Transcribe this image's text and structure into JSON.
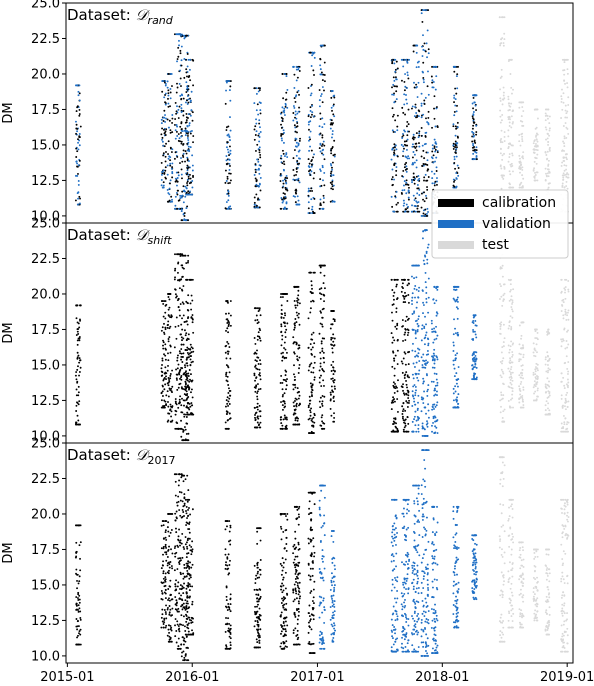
{
  "chart_data": [
    {
      "type": "scatter",
      "title": "Dataset: 𝒟rand",
      "title_main": "Dataset: ",
      "title_script": "𝒟",
      "title_sub": "rand",
      "ylabel": "DM",
      "ylim": [
        9.5,
        25.0
      ],
      "yticks": [
        "10.0",
        "12.5",
        "15.0",
        "17.5",
        "20.0",
        "22.5",
        "25.0"
      ],
      "legend": {
        "placement": "lower-right",
        "entries": [
          {
            "label": "calibration",
            "color": "#000000"
          },
          {
            "label": "validation",
            "color": "#1f6fc5"
          },
          {
            "label": "test",
            "color": "#d9d9d9"
          }
        ]
      },
      "split": "random",
      "clusters": [
        {
          "x": "2015-02-02",
          "ymin": 10.8,
          "ymax": 19.2,
          "dense": 0.5,
          "role": "cal-val"
        },
        {
          "x": "2015-10-10",
          "ymin": 12.0,
          "ymax": 19.5,
          "dense": 0.5,
          "role": "cal-val"
        },
        {
          "x": "2015-10-28",
          "ymin": 11.0,
          "ymax": 20.0,
          "dense": 0.5,
          "role": "cal-val"
        },
        {
          "x": "2015-11-22",
          "ymin": 10.5,
          "ymax": 22.8,
          "dense": 1.0,
          "role": "cal-val"
        },
        {
          "x": "2015-12-10",
          "ymin": 9.7,
          "ymax": 22.7,
          "dense": 1.0,
          "role": "cal-val"
        },
        {
          "x": "2015-12-24",
          "ymin": 11.5,
          "ymax": 21.0,
          "dense": 1.0,
          "role": "cal-val"
        },
        {
          "x": "2016-04-15",
          "ymin": 10.5,
          "ymax": 19.5,
          "dense": 0.6,
          "role": "cal-val"
        },
        {
          "x": "2016-07-10",
          "ymin": 10.6,
          "ymax": 19.0,
          "dense": 0.8,
          "role": "cal-val"
        },
        {
          "x": "2016-09-25",
          "ymin": 10.5,
          "ymax": 20.0,
          "dense": 0.9,
          "role": "cal-val"
        },
        {
          "x": "2016-11-01",
          "ymin": 10.8,
          "ymax": 20.5,
          "dense": 0.9,
          "role": "cal-val"
        },
        {
          "x": "2016-12-15",
          "ymin": 10.2,
          "ymax": 21.5,
          "dense": 0.8,
          "role": "cal-val"
        },
        {
          "x": "2017-01-15",
          "ymin": 10.5,
          "ymax": 22.0,
          "dense": 0.6,
          "role": "cal-val"
        },
        {
          "x": "2017-02-15",
          "ymin": 11.0,
          "ymax": 18.8,
          "dense": 0.4,
          "role": "cal-val"
        },
        {
          "x": "2017-08-15",
          "ymin": 10.3,
          "ymax": 21.0,
          "dense": 0.8,
          "role": "cal-val"
        },
        {
          "x": "2017-09-15",
          "ymin": 10.3,
          "ymax": 21.0,
          "dense": 1.0,
          "role": "cal-val"
        },
        {
          "x": "2017-10-15",
          "ymin": 10.3,
          "ymax": 22.0,
          "dense": 1.0,
          "role": "cal-val"
        },
        {
          "x": "2017-11-12",
          "ymin": 10.0,
          "ymax": 24.5,
          "dense": 1.0,
          "role": "cal-val"
        },
        {
          "x": "2017-12-10",
          "ymin": 10.2,
          "ymax": 20.5,
          "dense": 0.7,
          "role": "cal-val"
        },
        {
          "x": "2018-02-10",
          "ymin": 12.0,
          "ymax": 20.5,
          "dense": 0.6,
          "role": "cal-val"
        },
        {
          "x": "2018-04-05",
          "ymin": 14.0,
          "ymax": 18.5,
          "dense": 0.5,
          "role": "cal-val"
        },
        {
          "x": "2018-06-25",
          "ymin": 11.0,
          "ymax": 24.0,
          "dense": 0.5,
          "role": "test"
        },
        {
          "x": "2018-07-20",
          "ymin": 12.0,
          "ymax": 21.0,
          "dense": 0.5,
          "role": "test"
        },
        {
          "x": "2018-08-20",
          "ymin": 12.0,
          "ymax": 18.0,
          "dense": 0.4,
          "role": "test"
        },
        {
          "x": "2018-10-01",
          "ymin": 12.5,
          "ymax": 17.5,
          "dense": 0.4,
          "role": "test"
        },
        {
          "x": "2018-11-05",
          "ymin": 11.5,
          "ymax": 17.5,
          "dense": 0.4,
          "role": "test"
        },
        {
          "x": "2018-12-25",
          "ymin": 10.3,
          "ymax": 21.0,
          "dense": 1.0,
          "role": "test"
        }
      ]
    },
    {
      "type": "scatter",
      "title": "Dataset: 𝒟shift",
      "title_main": "Dataset: ",
      "title_script": "𝒟",
      "title_sub": "shift",
      "ylabel": "DM",
      "ylim": [
        9.5,
        25.0
      ],
      "yticks": [
        "10.0",
        "12.5",
        "15.0",
        "17.5",
        "20.0",
        "22.5",
        "25.0"
      ],
      "split": "calibration before 2017-10-01, validation 2017-10-01 to 2018-05-01, test after",
      "clusters": [
        {
          "x": "2015-02-02",
          "ymin": 10.8,
          "ymax": 19.2,
          "dense": 0.5,
          "role": "cal"
        },
        {
          "x": "2015-10-10",
          "ymin": 12.0,
          "ymax": 19.5,
          "dense": 0.5,
          "role": "cal"
        },
        {
          "x": "2015-10-28",
          "ymin": 11.0,
          "ymax": 20.0,
          "dense": 0.5,
          "role": "cal"
        },
        {
          "x": "2015-11-22",
          "ymin": 10.5,
          "ymax": 22.8,
          "dense": 1.0,
          "role": "cal"
        },
        {
          "x": "2015-12-10",
          "ymin": 9.7,
          "ymax": 22.7,
          "dense": 1.0,
          "role": "cal"
        },
        {
          "x": "2015-12-24",
          "ymin": 11.5,
          "ymax": 21.0,
          "dense": 1.0,
          "role": "cal"
        },
        {
          "x": "2016-04-15",
          "ymin": 10.5,
          "ymax": 19.5,
          "dense": 0.6,
          "role": "cal"
        },
        {
          "x": "2016-07-10",
          "ymin": 10.6,
          "ymax": 19.0,
          "dense": 0.8,
          "role": "cal"
        },
        {
          "x": "2016-09-25",
          "ymin": 10.5,
          "ymax": 20.0,
          "dense": 0.9,
          "role": "cal"
        },
        {
          "x": "2016-11-01",
          "ymin": 10.8,
          "ymax": 20.5,
          "dense": 0.9,
          "role": "cal"
        },
        {
          "x": "2016-12-15",
          "ymin": 10.2,
          "ymax": 21.5,
          "dense": 0.8,
          "role": "cal"
        },
        {
          "x": "2017-01-15",
          "ymin": 10.5,
          "ymax": 22.0,
          "dense": 0.6,
          "role": "cal"
        },
        {
          "x": "2017-02-15",
          "ymin": 11.0,
          "ymax": 18.8,
          "dense": 0.4,
          "role": "cal"
        },
        {
          "x": "2017-08-15",
          "ymin": 10.3,
          "ymax": 21.0,
          "dense": 0.8,
          "role": "cal"
        },
        {
          "x": "2017-09-15",
          "ymin": 10.3,
          "ymax": 21.0,
          "dense": 1.0,
          "role": "cal"
        },
        {
          "x": "2017-10-15",
          "ymin": 10.3,
          "ymax": 22.0,
          "dense": 1.0,
          "role": "val"
        },
        {
          "x": "2017-11-12",
          "ymin": 10.0,
          "ymax": 24.5,
          "dense": 1.0,
          "role": "val"
        },
        {
          "x": "2017-12-10",
          "ymin": 10.2,
          "ymax": 20.5,
          "dense": 0.7,
          "role": "val"
        },
        {
          "x": "2018-02-10",
          "ymin": 12.0,
          "ymax": 20.5,
          "dense": 0.6,
          "role": "val"
        },
        {
          "x": "2018-04-05",
          "ymin": 14.0,
          "ymax": 18.5,
          "dense": 0.5,
          "role": "val"
        },
        {
          "x": "2018-06-25",
          "ymin": 11.0,
          "ymax": 24.0,
          "dense": 0.5,
          "role": "test"
        },
        {
          "x": "2018-07-20",
          "ymin": 12.0,
          "ymax": 21.0,
          "dense": 0.5,
          "role": "test"
        },
        {
          "x": "2018-08-20",
          "ymin": 12.0,
          "ymax": 18.0,
          "dense": 0.4,
          "role": "test"
        },
        {
          "x": "2018-10-01",
          "ymin": 12.5,
          "ymax": 17.5,
          "dense": 0.4,
          "role": "test"
        },
        {
          "x": "2018-11-05",
          "ymin": 11.5,
          "ymax": 17.5,
          "dense": 0.4,
          "role": "test"
        },
        {
          "x": "2018-12-25",
          "ymin": 10.3,
          "ymax": 21.0,
          "dense": 1.0,
          "role": "test"
        }
      ]
    },
    {
      "type": "scatter",
      "title": "Dataset: 𝒟2017",
      "title_main": "Dataset: ",
      "title_script": "𝒟",
      "title_sub": "2017",
      "ylabel": "DM",
      "ylim": [
        9.5,
        25.0
      ],
      "yticks": [
        "10.0",
        "12.5",
        "15.0",
        "17.5",
        "20.0",
        "22.5",
        "25.0"
      ],
      "xticks": [
        "2015-01",
        "2016-01",
        "2017-01",
        "2018-01",
        "2019-01"
      ],
      "split": "calibration before 2017-01-01, validation 2017-01-01 to 2018-05-01, test after",
      "clusters": [
        {
          "x": "2015-02-02",
          "ymin": 10.8,
          "ymax": 19.2,
          "dense": 0.5,
          "role": "cal"
        },
        {
          "x": "2015-10-10",
          "ymin": 12.0,
          "ymax": 19.5,
          "dense": 0.5,
          "role": "cal"
        },
        {
          "x": "2015-10-28",
          "ymin": 11.0,
          "ymax": 20.0,
          "dense": 0.5,
          "role": "cal"
        },
        {
          "x": "2015-11-22",
          "ymin": 10.5,
          "ymax": 22.8,
          "dense": 1.0,
          "role": "cal"
        },
        {
          "x": "2015-12-10",
          "ymin": 9.7,
          "ymax": 22.7,
          "dense": 1.0,
          "role": "cal"
        },
        {
          "x": "2015-12-24",
          "ymin": 11.5,
          "ymax": 21.0,
          "dense": 1.0,
          "role": "cal"
        },
        {
          "x": "2016-04-15",
          "ymin": 10.5,
          "ymax": 19.5,
          "dense": 0.6,
          "role": "cal"
        },
        {
          "x": "2016-07-10",
          "ymin": 10.6,
          "ymax": 19.0,
          "dense": 0.8,
          "role": "cal"
        },
        {
          "x": "2016-09-25",
          "ymin": 10.5,
          "ymax": 20.0,
          "dense": 0.9,
          "role": "cal"
        },
        {
          "x": "2016-11-01",
          "ymin": 10.8,
          "ymax": 20.5,
          "dense": 0.9,
          "role": "cal"
        },
        {
          "x": "2016-12-15",
          "ymin": 10.2,
          "ymax": 21.5,
          "dense": 0.8,
          "role": "cal"
        },
        {
          "x": "2017-01-15",
          "ymin": 10.5,
          "ymax": 22.0,
          "dense": 0.6,
          "role": "val"
        },
        {
          "x": "2017-02-15",
          "ymin": 11.0,
          "ymax": 18.8,
          "dense": 0.4,
          "role": "val"
        },
        {
          "x": "2017-08-15",
          "ymin": 10.3,
          "ymax": 21.0,
          "dense": 0.8,
          "role": "val"
        },
        {
          "x": "2017-09-15",
          "ymin": 10.3,
          "ymax": 21.0,
          "dense": 1.0,
          "role": "val"
        },
        {
          "x": "2017-10-15",
          "ymin": 10.3,
          "ymax": 22.0,
          "dense": 1.0,
          "role": "val"
        },
        {
          "x": "2017-11-12",
          "ymin": 10.0,
          "ymax": 24.5,
          "dense": 1.0,
          "role": "val"
        },
        {
          "x": "2017-12-10",
          "ymin": 10.2,
          "ymax": 20.5,
          "dense": 0.7,
          "role": "val"
        },
        {
          "x": "2018-02-10",
          "ymin": 12.0,
          "ymax": 20.5,
          "dense": 0.6,
          "role": "val"
        },
        {
          "x": "2018-04-05",
          "ymin": 14.0,
          "ymax": 18.5,
          "dense": 0.5,
          "role": "val"
        },
        {
          "x": "2018-06-25",
          "ymin": 11.0,
          "ymax": 24.0,
          "dense": 0.5,
          "role": "test"
        },
        {
          "x": "2018-07-20",
          "ymin": 12.0,
          "ymax": 21.0,
          "dense": 0.5,
          "role": "test"
        },
        {
          "x": "2018-08-20",
          "ymin": 12.0,
          "ymax": 18.0,
          "dense": 0.4,
          "role": "test"
        },
        {
          "x": "2018-10-01",
          "ymin": 12.5,
          "ymax": 17.5,
          "dense": 0.4,
          "role": "test"
        },
        {
          "x": "2018-11-05",
          "ymin": 11.5,
          "ymax": 17.5,
          "dense": 0.4,
          "role": "test"
        },
        {
          "x": "2018-12-25",
          "ymin": 10.3,
          "ymax": 21.0,
          "dense": 1.0,
          "role": "test"
        }
      ]
    }
  ],
  "xaxis": {
    "xlim": [
      "2014-12-28",
      "2019-01-18"
    ],
    "ticks": [
      {
        "label": "2015-01",
        "date": "2015-01-01"
      },
      {
        "label": "2016-01",
        "date": "2016-01-01"
      },
      {
        "label": "2017-01",
        "date": "2017-01-01"
      },
      {
        "label": "2018-01",
        "date": "2018-01-01"
      },
      {
        "label": "2019-01",
        "date": "2019-01-01"
      }
    ]
  },
  "colors": {
    "calibration": "#000000",
    "validation": "#1f6fc5",
    "test": "#d9d9d9"
  }
}
